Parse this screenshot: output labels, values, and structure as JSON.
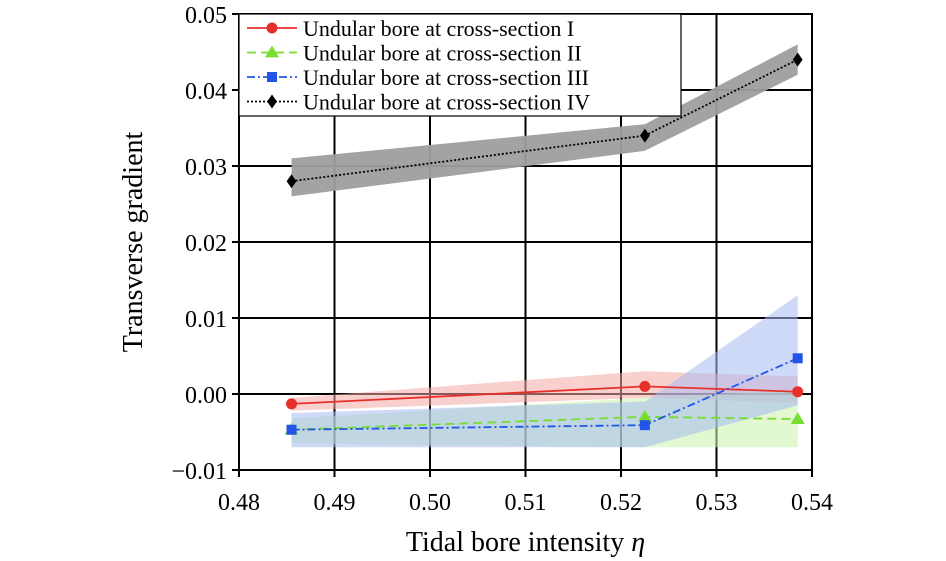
{
  "chart_data": {
    "type": "line",
    "xlabel": "Tidal bore intensity",
    "xlabel_symbol": "η",
    "ylabel": "Transverse gradient",
    "xlim": [
      0.48,
      0.54
    ],
    "ylim": [
      -0.01,
      0.05
    ],
    "xticks": [
      0.48,
      0.49,
      0.5,
      0.51,
      0.52,
      0.53,
      0.54
    ],
    "xtick_labels": [
      "0.48",
      "0.49",
      "0.50",
      "0.51",
      "0.52",
      "0.53",
      "0.54"
    ],
    "yticks": [
      -0.01,
      0.0,
      0.01,
      0.02,
      0.03,
      0.04,
      0.05
    ],
    "ytick_labels": [
      "−0.01",
      "0.00",
      "0.01",
      "0.02",
      "0.03",
      "0.04",
      "0.05"
    ],
    "grid": true,
    "legend_position": "top",
    "x": [
      0.4855,
      0.5225,
      0.5385
    ],
    "series": [
      {
        "name": "Undular bore at cross-section I",
        "values": [
          -0.0013,
          0.001,
          0.0003
        ],
        "band_lower": [
          -0.0022,
          -0.0005,
          -0.0012
        ],
        "band_upper": [
          -0.0005,
          0.003,
          0.0023
        ],
        "color": "#e8302a",
        "band_color": "#f5a9a6",
        "marker": "circle",
        "dash": ""
      },
      {
        "name": "Undular bore at cross-section II",
        "values": [
          -0.0047,
          -0.003,
          -0.0033
        ],
        "band_lower": [
          -0.0065,
          -0.007,
          -0.007
        ],
        "band_upper": [
          -0.0032,
          -0.0005,
          0.0005
        ],
        "color": "#77dd2f",
        "band_color": "#c9f2a9",
        "marker": "triangle",
        "dash": "9,5"
      },
      {
        "name": "Undular bore at cross-section III",
        "values": [
          -0.0047,
          -0.0041,
          0.0047
        ],
        "band_lower": [
          -0.007,
          -0.007,
          -0.0015
        ],
        "band_upper": [
          -0.0025,
          -0.001,
          0.013
        ],
        "color": "#2255e6",
        "band_color": "#a8b9f2",
        "marker": "square",
        "dash": "8,3,2,3"
      },
      {
        "name": "Undular bore at cross-section IV",
        "values": [
          0.028,
          0.034,
          0.044
        ],
        "band_lower": [
          0.026,
          0.032,
          0.042
        ],
        "band_upper": [
          0.031,
          0.0355,
          0.046
        ],
        "color": "#000000",
        "band_color": "#9e9e9e",
        "marker": "diamond",
        "dash": "2,2"
      }
    ]
  }
}
